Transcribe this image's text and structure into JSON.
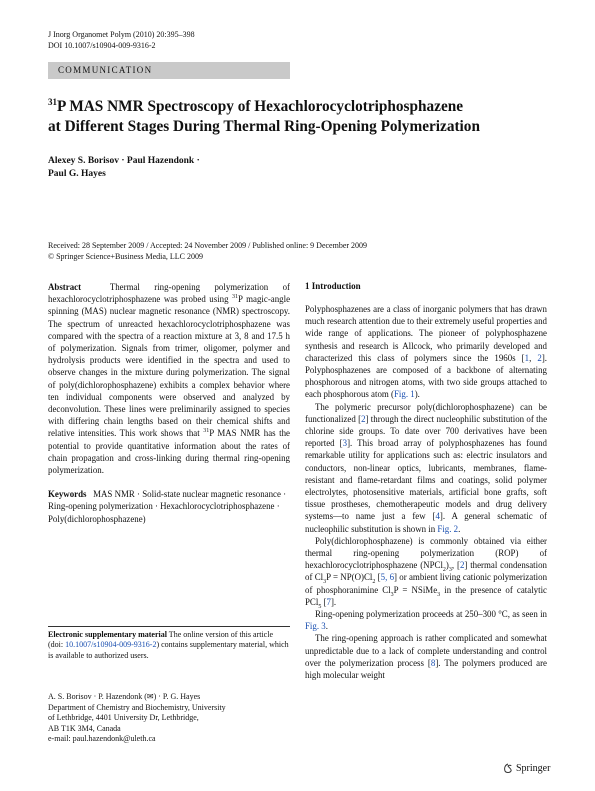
{
  "header": {
    "journal": "J Inorg Organomet Polym (2010) 20:395–398",
    "doi": "DOI 10.1007/s10904-009-9316-2",
    "section": "COMMUNICATION"
  },
  "title": {
    "sup": "31",
    "line1": "P MAS NMR Spectroscopy of Hexachlorocyclotriphosphazene",
    "line2": "at Different Stages During Thermal Ring-Opening Polymerization"
  },
  "authors": {
    "line1": "Alexey S. Borisov · Paul Hazendonk ·",
    "line2": "Paul G. Hayes"
  },
  "dates": {
    "history": "Received: 28 September 2009 / Accepted: 24 November 2009 / Published online: 9 December 2009",
    "copyright": "© Springer Science+Business Media, LLC 2009"
  },
  "abstract": {
    "label": "Abstract",
    "text": [
      "Thermal ring-opening polymerization of hexachlorocyclotriphosphazene was probed using ",
      "31",
      "P magic-angle spinning (MAS) nuclear magnetic resonance (NMR) spectroscopy. The spectrum of unreacted hexachlorocyclotriphosphazene was compared with the spectra of a reaction mixture at 3, 8 and 17.5 h of polymerization. Signals from trimer, oligomer, polymer and hydrolysis products were identified in the spectra and used to observe changes in the mixture during polymerization. The signal of poly(dichlorophosphazene) exhibits a complex behavior where ten individual components were observed and analyzed by deconvolution. These lines were preliminarily assigned to species with differing chain lengths based on their chemical shifts and relative intensities. This work shows that ",
      "31",
      "P MAS NMR has the potential to provide quantitative information about the rates of chain propagation and cross-linking during thermal ring-opening polymerization."
    ]
  },
  "keywords": {
    "label": "Keywords",
    "text": "MAS NMR · Solid-state nuclear magnetic resonance · Ring-opening polymerization · Hexachlorocyclotriphosphazene · Poly(dichlorophosphazene)"
  },
  "esm": {
    "label": "Electronic supplementary material",
    "text": [
      " The online version of this article (doi: ",
      "10.1007/s10904-009-9316-2",
      ") contains supplementary material, which is available to authorized users."
    ]
  },
  "affiliation": [
    "A. S. Borisov · P. Hazendonk (✉) · P. G. Hayes",
    "Department of Chemistry and Biochemistry, University",
    "of Lethbridge, 4401 University Dr, Lethbridge,",
    "AB T1K 3M4, Canada",
    "e-mail: paul.hazendonk@uleth.ca"
  ],
  "introduction": {
    "heading": "1 Introduction",
    "paragraphs": [
      [
        "Polyphosphazenes are a class of inorganic polymers that has drawn much research attention due to their extremely useful properties and wide range of applications. The pioneer of polyphosphazene synthesis and research is Allcock, who primarily developed and characterized this class of polymers since the 1960s [",
        "1",
        ", ",
        "2",
        "]. Polyphosphazenes are composed of a backbone of alternating phosphorous and nitrogen atoms, with two side groups attached to each phosphorous atom (",
        "Fig. 1",
        ")."
      ],
      [
        "The polymeric precursor poly(dichlorophosphazene) can be functionalized [",
        "2",
        "] through the direct nucleophilic substitution of the chlorine side groups. To date over 700 derivatives have been reported [",
        "3",
        "]. This broad array of polyphosphazenes has found remarkable utility for applications such as: electric insulators and conductors, non-linear optics, lubricants, membranes, flame-resistant and flame-retardant films and coatings, solid polymer electrolytes, photosensitive materials, artificial bone grafts, soft tissue prostheses, chemotherapeutic models and drug delivery systems—to name just a few [",
        "4",
        "]. A general schematic of nucleophilic substitution is shown in ",
        "Fig. 2",
        "."
      ],
      [
        "Poly(dichlorophosphazene) is commonly obtained via either thermal ring-opening polymerization (ROP) of hexachlorocyclotriphosphazene (NPCl",
        "2",
        ")",
        "3",
        ", [",
        "2",
        "] thermal condensation of Cl",
        "3",
        "P = NP(O)Cl",
        "2",
        " [",
        "5, 6",
        "] or ambient living cationic polymerization of phosphoranimine Cl",
        "3",
        "P = NSiMe",
        "3",
        " in the presence of catalytic PCl",
        "5",
        " [",
        "7",
        "]."
      ],
      [
        "Ring-opening polymerization proceeds at 250–300 °C, as seen in ",
        "Fig. 3",
        "."
      ],
      [
        "The ring-opening approach is rather complicated and somewhat unpredictable due to a lack of complete understanding and control over the polymerization process [",
        "8",
        "]. The polymers produced are high molecular weight"
      ]
    ]
  },
  "footer": {
    "publisher": "Springer"
  }
}
